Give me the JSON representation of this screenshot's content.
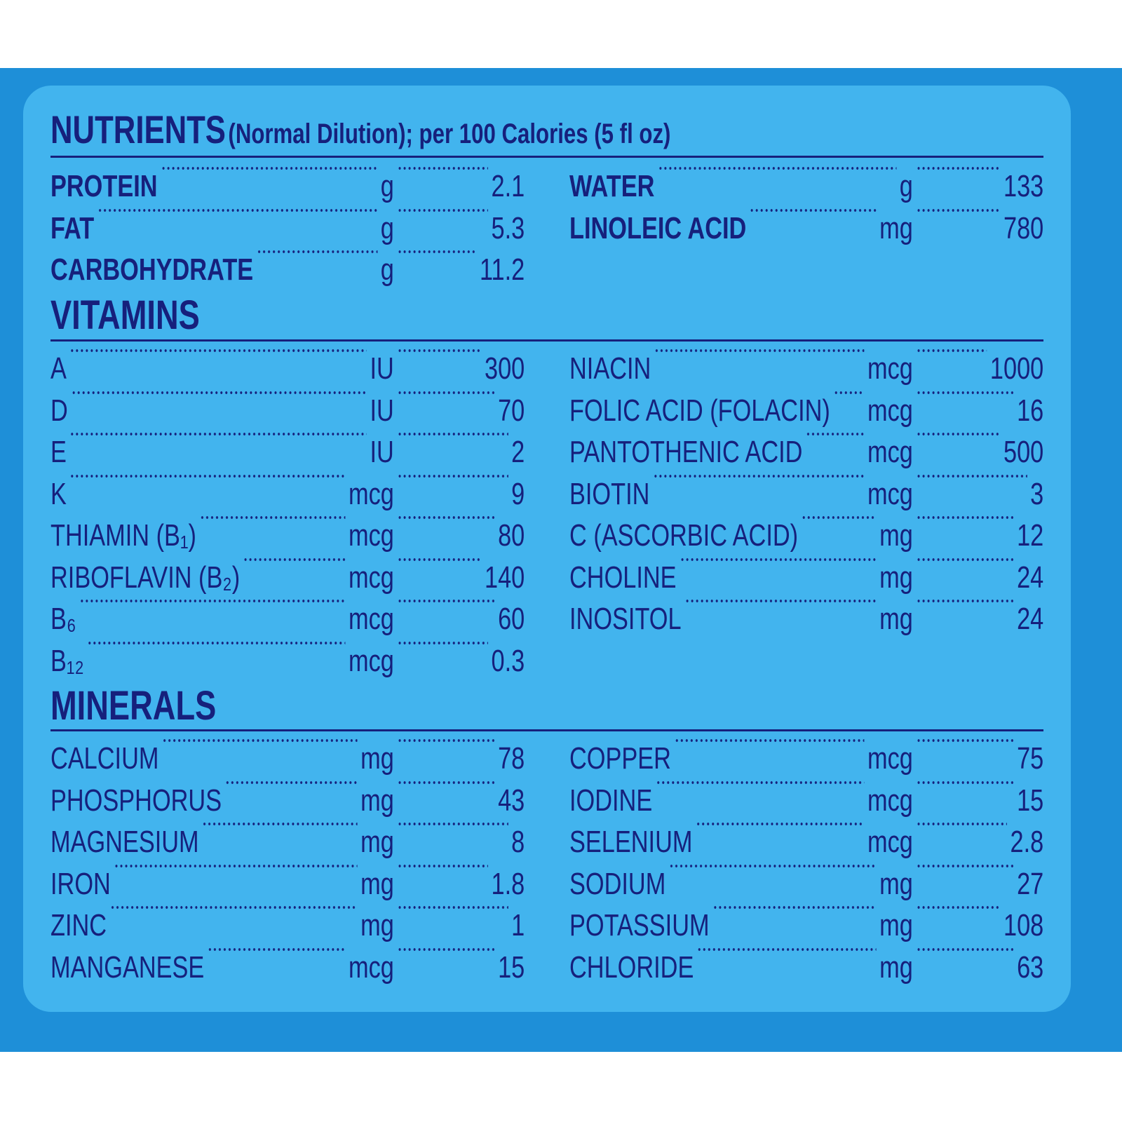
{
  "header": {
    "title": "NUTRIENTS",
    "subtitle": "(Normal Dilution); per 100 Calories (5 fl oz)"
  },
  "sections": [
    {
      "rows_left": [
        {
          "name": "PROTEIN",
          "unit": "g",
          "value": 2.1
        },
        {
          "name": "FAT",
          "unit": "g",
          "value": 5.3
        },
        {
          "name": "CARBOHYDRATE",
          "unit": "g",
          "value": 11.2
        }
      ],
      "rows_right": [
        {
          "name": "WATER",
          "unit": "g",
          "value": 133
        },
        {
          "name": "LINOLEIC ACID",
          "unit": "mg",
          "value": 780
        }
      ]
    },
    {
      "heading": "VITAMINS",
      "rows_left": [
        {
          "name": "A",
          "unit": "IU",
          "value": 300
        },
        {
          "name": "D",
          "unit": "IU",
          "value": 70
        },
        {
          "name": "E",
          "unit": "IU",
          "value": 2
        },
        {
          "name": "K",
          "unit": "mcg",
          "value": 9
        },
        {
          "name": "THIAMIN (B₁)",
          "unit": "mcg",
          "value": 80
        },
        {
          "name": "RIBOFLAVIN (B₂)",
          "unit": "mcg",
          "value": 140
        },
        {
          "name": "B₆",
          "unit": "mcg",
          "value": 60
        },
        {
          "name": "B₁₂",
          "unit": "mcg",
          "value": 0.3
        }
      ],
      "rows_right": [
        {
          "name": "NIACIN",
          "unit": "mcg",
          "value": 1000
        },
        {
          "name": "FOLIC ACID (FOLACIN)",
          "unit": "mcg",
          "value": 16
        },
        {
          "name": "PANTOTHENIC ACID",
          "unit": "mcg",
          "value": 500
        },
        {
          "name": "BIOTIN",
          "unit": "mcg",
          "value": 3
        },
        {
          "name": "C (ASCORBIC ACID)",
          "unit": "mg",
          "value": 12
        },
        {
          "name": "CHOLINE",
          "unit": "mg",
          "value": 24
        },
        {
          "name": "INOSITOL",
          "unit": "mg",
          "value": 24
        }
      ]
    },
    {
      "heading": "MINERALS",
      "rows_left": [
        {
          "name": "CALCIUM",
          "unit": "mg",
          "value": 78
        },
        {
          "name": "PHOSPHORUS",
          "unit": "mg",
          "value": 43
        },
        {
          "name": "MAGNESIUM",
          "unit": "mg",
          "value": 8
        },
        {
          "name": "IRON",
          "unit": "mg",
          "value": 1.8
        },
        {
          "name": "ZINC",
          "unit": "mg",
          "value": 1
        },
        {
          "name": "MANGANESE",
          "unit": "mcg",
          "value": 15
        }
      ],
      "rows_right": [
        {
          "name": "COPPER",
          "unit": "mcg",
          "value": 75
        },
        {
          "name": "IODINE",
          "unit": "mcg",
          "value": 15
        },
        {
          "name": "SELENIUM",
          "unit": "mcg",
          "value": 2.8
        },
        {
          "name": "SODIUM",
          "unit": "mg",
          "value": 27
        },
        {
          "name": "POTASSIUM",
          "unit": "mg",
          "value": 108
        },
        {
          "name": "CHLORIDE",
          "unit": "mg",
          "value": 63
        }
      ]
    }
  ]
}
